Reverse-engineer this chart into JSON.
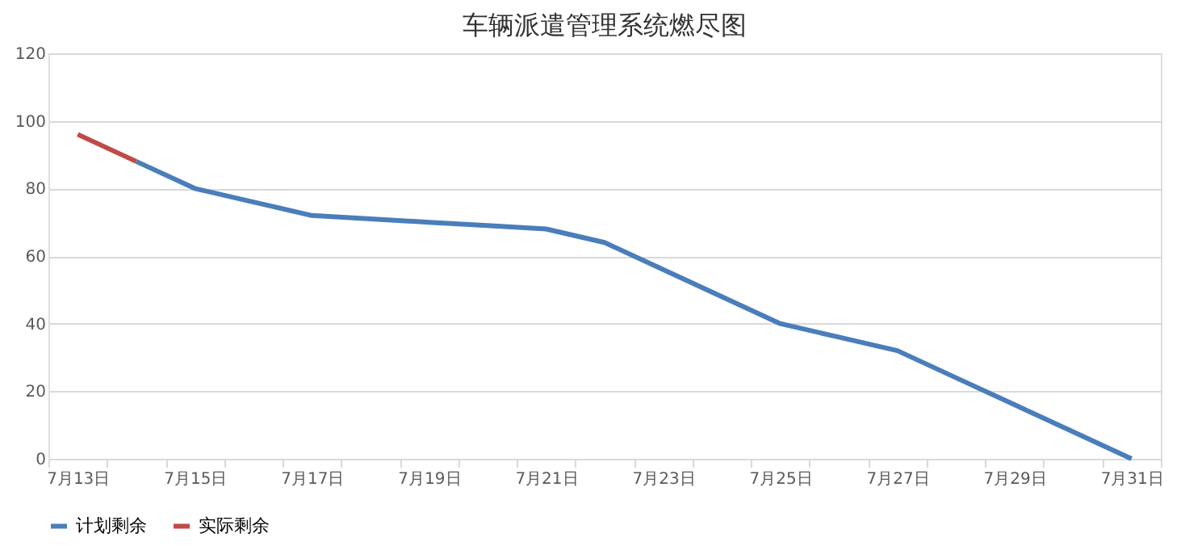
{
  "chart_data": {
    "type": "line",
    "title": "车辆派遣管理系统燃尽图",
    "categories": [
      "7月13日",
      null,
      "7月15日",
      null,
      "7月17日",
      null,
      "7月19日",
      null,
      "7月21日",
      null,
      "7月23日",
      null,
      "7月25日",
      null,
      "7月27日",
      null,
      "7月29日",
      null,
      "7月31日"
    ],
    "series": [
      {
        "name": "计划剩余",
        "color": "#4a7ebb",
        "values": [
          null,
          88,
          80,
          76,
          72,
          71,
          70,
          69,
          68,
          64,
          56,
          48,
          40,
          36,
          32,
          24,
          16,
          8,
          0
        ]
      },
      {
        "name": "实际剩余",
        "color": "#be4b48",
        "values": [
          96,
          88,
          null,
          null,
          null,
          null,
          null,
          null,
          null,
          null,
          null,
          null,
          null,
          null,
          null,
          null,
          null,
          null,
          null
        ]
      }
    ],
    "ylim": [
      0,
      120
    ],
    "yticks": [
      0,
      20,
      40,
      60,
      80,
      100,
      120
    ],
    "grid": "y",
    "legend": "bottom",
    "line_style": "solid",
    "marker": "none"
  }
}
